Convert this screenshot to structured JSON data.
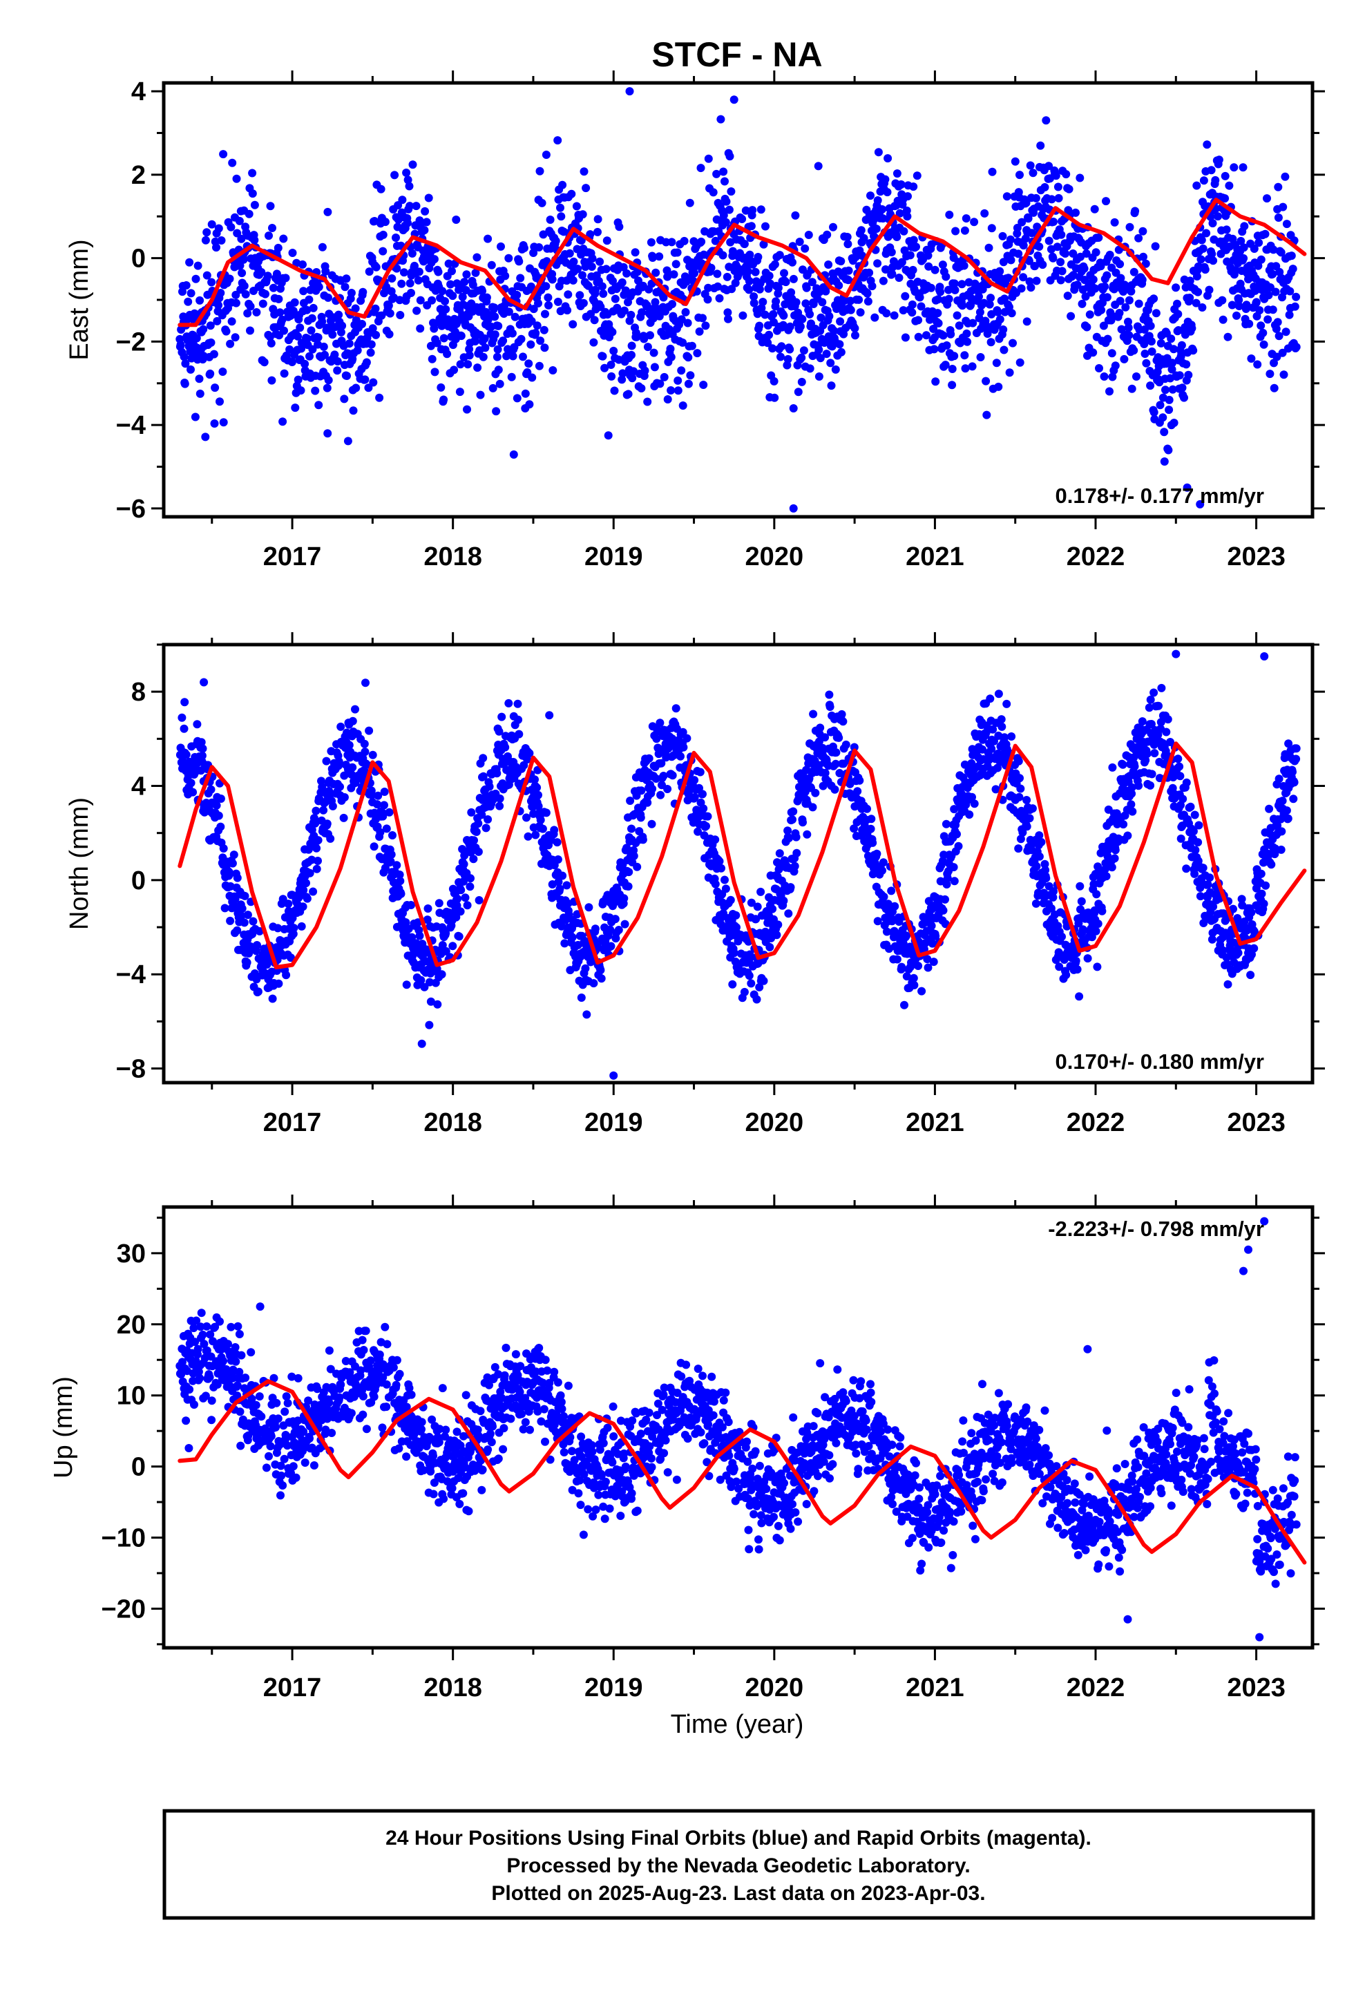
{
  "title": "STCF - NA",
  "xlabel": "Time (year)",
  "footer": {
    "line1": "24 Hour Positions Using Final Orbits (blue) and Rapid Orbits (magenta).",
    "line2": "Processed by the Nevada Geodetic Laboratory.",
    "line3": "Plotted on 2025-Aug-23. Last data on 2023-Apr-03."
  },
  "colors": {
    "data": "#0000ff",
    "fit": "#ff0000"
  },
  "chart_data": [
    {
      "type": "scatter",
      "ylabel": "East (mm)",
      "rate": "0.178+/- 0.177 mm/yr",
      "rate_position": "bottom-right",
      "xlim": [
        2016.2,
        2023.35
      ],
      "ylim": [
        -6.2,
        4.2
      ],
      "yticks": [
        4,
        2,
        0,
        -2,
        -4,
        -6
      ],
      "xticks": [
        2017,
        2018,
        2019,
        2020,
        2021,
        2022,
        2023
      ],
      "grid": false,
      "model": {
        "trend": 0.178,
        "annual": [
          -0.9,
          -0.3
        ],
        "semiannual": [
          0.2,
          -0.3
        ],
        "offset_2016": -1.3,
        "noise": 0.95
      },
      "fit": [
        [
          2016.3,
          -1.6
        ],
        [
          2016.4,
          -1.6
        ],
        [
          2016.5,
          -1.0
        ],
        [
          2016.6,
          -0.1
        ],
        [
          2016.75,
          0.3
        ],
        [
          2016.9,
          0.0
        ],
        [
          2017.05,
          -0.3
        ],
        [
          2017.2,
          -0.5
        ],
        [
          2017.35,
          -1.3
        ],
        [
          2017.45,
          -1.4
        ],
        [
          2017.6,
          -0.3
        ],
        [
          2017.75,
          0.5
        ],
        [
          2017.9,
          0.3
        ],
        [
          2018.05,
          -0.1
        ],
        [
          2018.2,
          -0.3
        ],
        [
          2018.35,
          -1.0
        ],
        [
          2018.45,
          -1.2
        ],
        [
          2018.6,
          -0.2
        ],
        [
          2018.75,
          0.7
        ],
        [
          2018.9,
          0.3
        ],
        [
          2019.05,
          0.0
        ],
        [
          2019.2,
          -0.3
        ],
        [
          2019.35,
          -0.9
        ],
        [
          2019.45,
          -1.1
        ],
        [
          2019.6,
          0.0
        ],
        [
          2019.75,
          0.8
        ],
        [
          2019.9,
          0.5
        ],
        [
          2020.05,
          0.3
        ],
        [
          2020.2,
          0.0
        ],
        [
          2020.35,
          -0.7
        ],
        [
          2020.45,
          -0.9
        ],
        [
          2020.6,
          0.2
        ],
        [
          2020.75,
          1.0
        ],
        [
          2020.9,
          0.6
        ],
        [
          2021.05,
          0.4
        ],
        [
          2021.2,
          0.0
        ],
        [
          2021.35,
          -0.6
        ],
        [
          2021.45,
          -0.8
        ],
        [
          2021.6,
          0.3
        ],
        [
          2021.75,
          1.2
        ],
        [
          2021.9,
          0.8
        ],
        [
          2022.05,
          0.6
        ],
        [
          2022.2,
          0.2
        ],
        [
          2022.35,
          -0.5
        ],
        [
          2022.45,
          -0.6
        ],
        [
          2022.6,
          0.5
        ],
        [
          2022.75,
          1.4
        ],
        [
          2022.9,
          1.0
        ],
        [
          2023.05,
          0.8
        ],
        [
          2023.2,
          0.4
        ],
        [
          2023.3,
          0.1
        ]
      ],
      "outliers": [
        [
          2020.12,
          -6.0
        ],
        [
          2019.1,
          4.0
        ],
        [
          2017.22,
          -4.2
        ],
        [
          2018.45,
          -3.6
        ],
        [
          2019.75,
          3.8
        ],
        [
          2020.12,
          -3.6
        ],
        [
          2022.57,
          -5.5
        ],
        [
          2022.65,
          -5.9
        ]
      ]
    },
    {
      "type": "scatter",
      "ylabel": "North (mm)",
      "rate": "0.170+/- 0.180 mm/yr",
      "rate_position": "bottom-right",
      "xlim": [
        2016.2,
        2023.35
      ],
      "ylim": [
        -8.6,
        10.0
      ],
      "yticks": [
        8,
        4,
        0,
        -4,
        -8
      ],
      "xticks": [
        2017,
        2018,
        2019,
        2020,
        2021,
        2022,
        2023
      ],
      "grid": false,
      "model": {
        "trend": 0.17,
        "annual_amp": 4.4,
        "offset_2016": 0.6,
        "noise": 0.9
      },
      "fit": [
        [
          2016.3,
          0.6
        ],
        [
          2016.4,
          3.0
        ],
        [
          2016.5,
          4.8
        ],
        [
          2016.6,
          4.0
        ],
        [
          2016.75,
          -0.5
        ],
        [
          2016.9,
          -3.7
        ],
        [
          2017.0,
          -3.6
        ],
        [
          2017.15,
          -2.0
        ],
        [
          2017.3,
          0.5
        ],
        [
          2017.5,
          5.0
        ],
        [
          2017.6,
          4.2
        ],
        [
          2017.75,
          -0.5
        ],
        [
          2017.9,
          -3.6
        ],
        [
          2018.0,
          -3.4
        ],
        [
          2018.15,
          -1.8
        ],
        [
          2018.3,
          0.8
        ],
        [
          2018.5,
          5.2
        ],
        [
          2018.6,
          4.4
        ],
        [
          2018.75,
          -0.3
        ],
        [
          2018.9,
          -3.5
        ],
        [
          2019.0,
          -3.2
        ],
        [
          2019.15,
          -1.6
        ],
        [
          2019.3,
          1.0
        ],
        [
          2019.5,
          5.4
        ],
        [
          2019.6,
          4.6
        ],
        [
          2019.75,
          -0.1
        ],
        [
          2019.9,
          -3.3
        ],
        [
          2020.0,
          -3.1
        ],
        [
          2020.15,
          -1.5
        ],
        [
          2020.3,
          1.2
        ],
        [
          2020.5,
          5.5
        ],
        [
          2020.6,
          4.7
        ],
        [
          2020.75,
          0.0
        ],
        [
          2020.9,
          -3.2
        ],
        [
          2021.0,
          -3.0
        ],
        [
          2021.15,
          -1.3
        ],
        [
          2021.3,
          1.4
        ],
        [
          2021.5,
          5.7
        ],
        [
          2021.6,
          4.8
        ],
        [
          2021.75,
          0.2
        ],
        [
          2021.9,
          -3.0
        ],
        [
          2022.0,
          -2.8
        ],
        [
          2022.15,
          -1.1
        ],
        [
          2022.3,
          1.6
        ],
        [
          2022.5,
          5.8
        ],
        [
          2022.6,
          5.0
        ],
        [
          2022.75,
          0.2
        ],
        [
          2022.9,
          -2.7
        ],
        [
          2023.0,
          -2.5
        ],
        [
          2023.15,
          -1.0
        ],
        [
          2023.3,
          0.4
        ]
      ],
      "outliers": [
        [
          2019.0,
          -8.3
        ],
        [
          2022.5,
          9.6
        ],
        [
          2023.05,
          9.5
        ],
        [
          2018.6,
          7.0
        ],
        [
          2016.45,
          8.4
        ],
        [
          2023.2,
          5.8
        ]
      ]
    },
    {
      "type": "scatter",
      "ylabel": "Up (mm)",
      "rate": "-2.223+/- 0.798 mm/yr",
      "rate_position": "top-right",
      "xlim": [
        2016.2,
        2023.35
      ],
      "ylim": [
        -25.5,
        36.5
      ],
      "yticks": [
        30,
        20,
        10,
        0,
        -10,
        -20
      ],
      "xticks": [
        2017,
        2018,
        2019,
        2020,
        2021,
        2022,
        2023
      ],
      "grid": false,
      "model": {
        "trend": -2.223,
        "annual_amp": 6.0,
        "offset_2016": 7.5,
        "noise": 3.3
      },
      "fit": [
        [
          2016.3,
          0.8
        ],
        [
          2016.4,
          1.0
        ],
        [
          2016.5,
          4.5
        ],
        [
          2016.65,
          9.0
        ],
        [
          2016.85,
          12.0
        ],
        [
          2017.0,
          10.5
        ],
        [
          2017.15,
          5.0
        ],
        [
          2017.3,
          -0.5
        ],
        [
          2017.35,
          -1.5
        ],
        [
          2017.5,
          2.0
        ],
        [
          2017.65,
          6.5
        ],
        [
          2017.85,
          9.5
        ],
        [
          2018.0,
          8.0
        ],
        [
          2018.15,
          3.0
        ],
        [
          2018.3,
          -2.5
        ],
        [
          2018.35,
          -3.5
        ],
        [
          2018.5,
          -1.0
        ],
        [
          2018.65,
          3.5
        ],
        [
          2018.85,
          7.5
        ],
        [
          2019.0,
          6.0
        ],
        [
          2019.15,
          1.0
        ],
        [
          2019.3,
          -4.5
        ],
        [
          2019.35,
          -5.8
        ],
        [
          2019.5,
          -3.0
        ],
        [
          2019.65,
          1.5
        ],
        [
          2019.85,
          5.2
        ],
        [
          2020.0,
          3.5
        ],
        [
          2020.15,
          -1.5
        ],
        [
          2020.3,
          -7.0
        ],
        [
          2020.35,
          -8.0
        ],
        [
          2020.5,
          -5.5
        ],
        [
          2020.65,
          -1.0
        ],
        [
          2020.85,
          2.8
        ],
        [
          2021.0,
          1.5
        ],
        [
          2021.15,
          -3.5
        ],
        [
          2021.3,
          -9.0
        ],
        [
          2021.35,
          -10.0
        ],
        [
          2021.5,
          -7.5
        ],
        [
          2021.65,
          -3.0
        ],
        [
          2021.85,
          0.8
        ],
        [
          2022.0,
          -0.5
        ],
        [
          2022.15,
          -5.5
        ],
        [
          2022.3,
          -11.0
        ],
        [
          2022.35,
          -12.0
        ],
        [
          2022.5,
          -9.5
        ],
        [
          2022.65,
          -5.0
        ],
        [
          2022.85,
          -1.3
        ],
        [
          2023.0,
          -3.0
        ],
        [
          2023.15,
          -8.5
        ],
        [
          2023.3,
          -13.5
        ]
      ],
      "outliers": [
        [
          2023.05,
          34.5
        ],
        [
          2022.95,
          30.5
        ],
        [
          2022.92,
          27.5
        ],
        [
          2023.02,
          -24.0
        ],
        [
          2022.2,
          -21.5
        ],
        [
          2016.8,
          22.5
        ],
        [
          2021.95,
          16.5
        ]
      ]
    }
  ]
}
